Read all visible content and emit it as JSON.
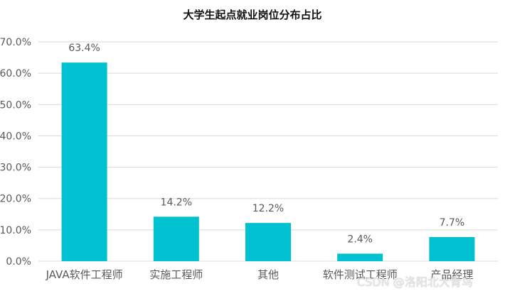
{
  "chart_data": {
    "type": "bar",
    "title": "大学生起点就业岗位分布占比",
    "xlabel": "",
    "ylabel": "",
    "categories": [
      "JAVA软件工程师",
      "实施工程师",
      "其他",
      "软件测试工程师",
      "产品经理"
    ],
    "values": [
      63.4,
      14.2,
      12.2,
      2.4,
      7.7
    ],
    "data_labels": [
      "63.4%",
      "14.2%",
      "12.2%",
      "2.4%",
      "7.7%"
    ],
    "ylim": [
      0,
      70
    ],
    "yticks": [
      0,
      10,
      20,
      30,
      40,
      50,
      60,
      70
    ],
    "ytick_labels": [
      "0.0%",
      "10.0%",
      "20.0%",
      "30.0%",
      "40.0%",
      "50.0%",
      "60.0%",
      "70.0%"
    ],
    "grid": true,
    "legend": "none",
    "bar_color": "#00C1CF",
    "grid_color": "#d9d9d9",
    "axis_text_color": "#595959"
  },
  "watermark": "CSDN @洛阳北大青鸟"
}
